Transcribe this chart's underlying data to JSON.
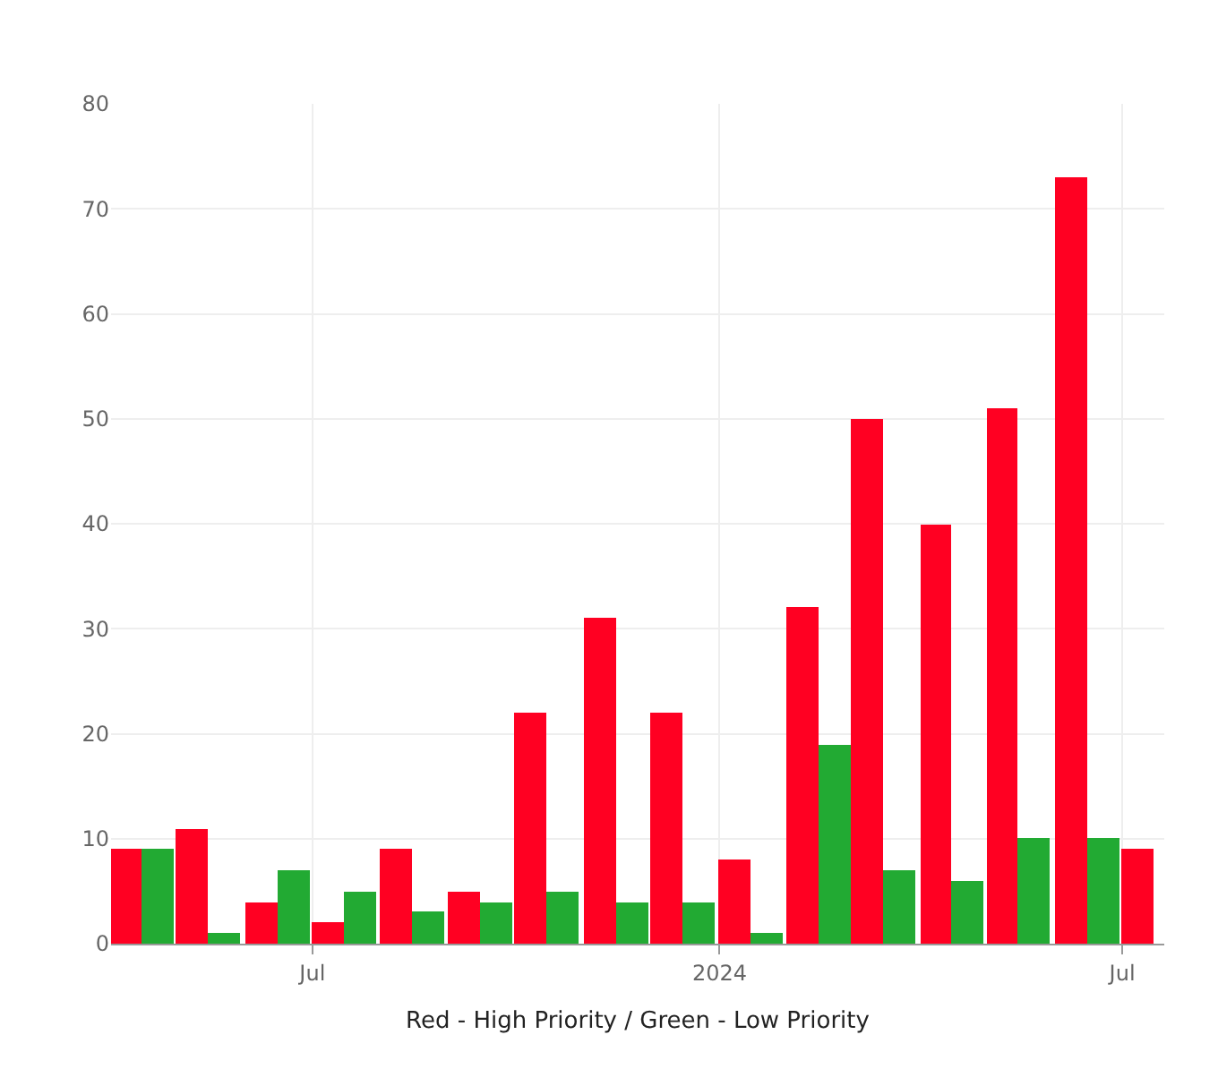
{
  "chart_data": {
    "type": "bar",
    "xlabel": "Red - High Priority / Green - Low Priority",
    "x": [
      "2023-04-15",
      "2023-05-15",
      "2023-06-15",
      "2023-07-15",
      "2023-08-15",
      "2023-09-15",
      "2023-10-15",
      "2023-11-15",
      "2023-12-15",
      "2024-01-15",
      "2024-02-15",
      "2024-03-15",
      "2024-04-15",
      "2024-05-15",
      "2024-06-15",
      "2024-07-15"
    ],
    "series": [
      {
        "color": "#ff0022",
        "values": [
          9,
          11,
          4,
          2,
          9,
          5,
          22,
          31,
          22,
          8,
          32,
          50,
          40,
          51,
          73,
          9
        ]
      },
      {
        "color": "#22aa33",
        "values": [
          9,
          1,
          7,
          5,
          3,
          4,
          5,
          4,
          4,
          1,
          19,
          7,
          6,
          10,
          10,
          null
        ]
      }
    ],
    "xlim": [
      "2023-04-01",
      "2024-07-20"
    ],
    "xticks": [
      {
        "value": "2023-07-01",
        "label": "Jul"
      },
      {
        "value": "2024-01-01",
        "label": "2024"
      },
      {
        "value": "2024-07-01",
        "label": "Jul"
      }
    ],
    "ylim": [
      0,
      80
    ],
    "yticks": [
      0,
      10,
      20,
      30,
      40,
      50,
      60,
      70,
      80
    ],
    "grid": true
  }
}
